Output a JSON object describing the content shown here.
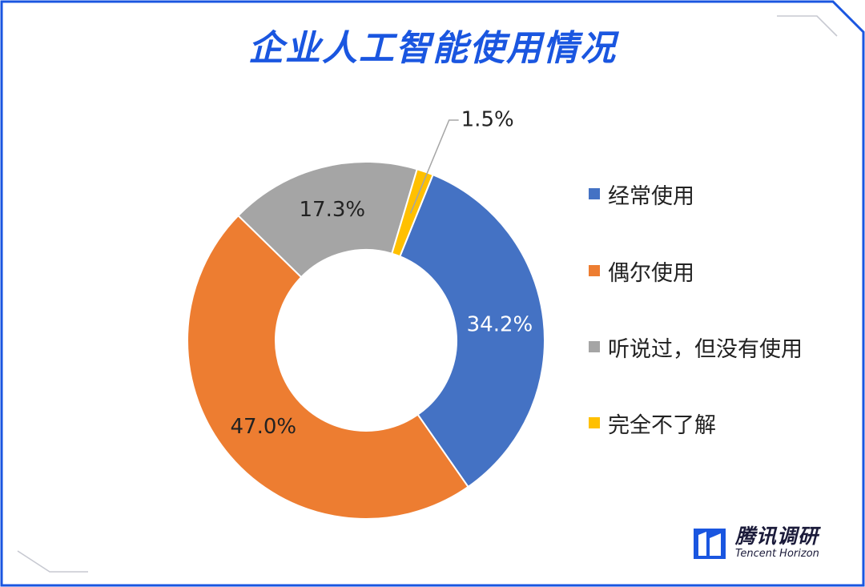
{
  "title": "企业人工智能使用情况",
  "chart_data": {
    "type": "pie",
    "variant": "donut",
    "legend_position": "right",
    "slices": [
      {
        "label": "经常使用",
        "value": 34.2,
        "display": "34.2%",
        "color": "#4472c4"
      },
      {
        "label": "偶尔使用",
        "value": 47.0,
        "display": "47.0%",
        "color": "#ed7d31"
      },
      {
        "label": "听说过，但没有使用",
        "value": 17.3,
        "display": "17.3%",
        "color": "#a5a5a5"
      },
      {
        "label": "完全不了解",
        "value": 1.5,
        "display": "1.5%",
        "color": "#ffc000"
      }
    ]
  },
  "brand": {
    "name_cn": "腾讯调研",
    "name_en": "Tencent Horizon",
    "icon": "tencent-horizon-logo-icon",
    "color": "#1a56e0"
  },
  "colors": {
    "title": "#1a56e0",
    "frame": "#1a56e0"
  }
}
